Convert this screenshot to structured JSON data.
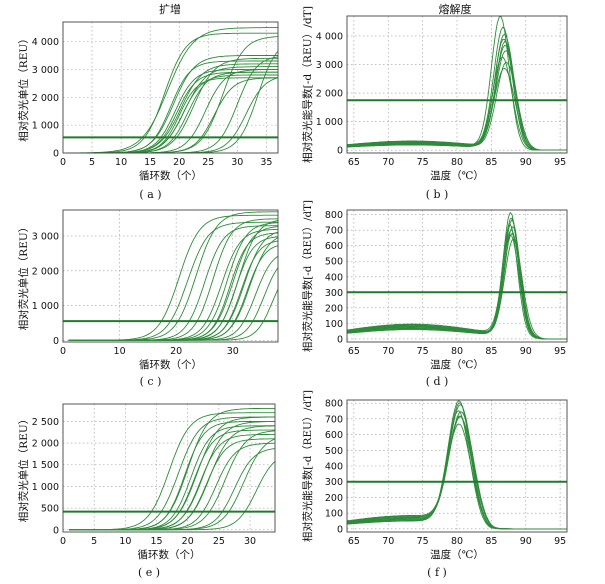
{
  "figure": {
    "column_titles": [
      "扩增",
      "熔解度"
    ]
  },
  "chart_data": [
    {
      "id": "a",
      "type": "line",
      "caption": "( a )",
      "title": "扩增",
      "xlabel": "循环数（个）",
      "ylabel": "相对荧光单位（REU）",
      "xlim": [
        0,
        37
      ],
      "ylim": [
        0,
        4700
      ],
      "xticks": [
        0,
        5,
        10,
        15,
        20,
        25,
        30,
        35
      ],
      "yticks": [
        0,
        1000,
        2000,
        3000,
        4000
      ],
      "grid": true,
      "threshold": 560,
      "curve_model": "sigmoid",
      "series": [
        {
          "midpoint": 17.5,
          "plateau": 4300,
          "steepness": 0.55
        },
        {
          "midpoint": 18.0,
          "plateau": 4500,
          "steepness": 0.45
        },
        {
          "midpoint": 18.5,
          "plateau": 3300,
          "steepness": 0.6
        },
        {
          "midpoint": 19.0,
          "plateau": 3500,
          "steepness": 0.55
        },
        {
          "midpoint": 19.3,
          "plateau": 3000,
          "steepness": 0.6
        },
        {
          "midpoint": 19.6,
          "plateau": 2900,
          "steepness": 0.6
        },
        {
          "midpoint": 20.0,
          "plateau": 2700,
          "steepness": 0.65
        },
        {
          "midpoint": 20.3,
          "plateau": 3200,
          "steepness": 0.55
        },
        {
          "midpoint": 20.6,
          "plateau": 2800,
          "steepness": 0.6
        },
        {
          "midpoint": 21.0,
          "plateau": 3100,
          "steepness": 0.55
        },
        {
          "midpoint": 21.5,
          "plateau": 2900,
          "steepness": 0.6
        },
        {
          "midpoint": 22.5,
          "plateau": 3400,
          "steepness": 0.55
        },
        {
          "midpoint": 24.5,
          "plateau": 3000,
          "steepness": 0.6
        },
        {
          "midpoint": 26.0,
          "plateau": 2700,
          "steepness": 0.6
        },
        {
          "midpoint": 27.5,
          "plateau": 4200,
          "steepness": 0.55
        },
        {
          "midpoint": 30.0,
          "plateau": 3500,
          "steepness": 0.6
        },
        {
          "midpoint": 31.5,
          "plateau": 2800,
          "steepness": 0.6
        },
        {
          "midpoint": 33.5,
          "plateau": 4100,
          "steepness": 0.6
        }
      ]
    },
    {
      "id": "b",
      "type": "line",
      "caption": "( b )",
      "title": "熔解度",
      "xlabel": "温度（℃）",
      "ylabel": "相对荧光能导数[-d（REU）/dT]",
      "xlim": [
        64,
        96
      ],
      "ylim": [
        -100,
        4700
      ],
      "xticks": [
        65,
        70,
        75,
        80,
        85,
        90,
        95
      ],
      "yticks": [
        0,
        1000,
        2000,
        3000,
        4000
      ],
      "grid": true,
      "threshold": 1750,
      "curve_model": "melt-peak",
      "series": [
        {
          "peak_x": 86.3,
          "peak_y": 4600,
          "sigma": 1.3,
          "baseline": 250
        },
        {
          "peak_x": 86.7,
          "peak_y": 4200,
          "sigma": 1.35,
          "baseline": 300
        },
        {
          "peak_x": 86.9,
          "peak_y": 4000,
          "sigma": 1.4,
          "baseline": 200
        },
        {
          "peak_x": 86.8,
          "peak_y": 3800,
          "sigma": 1.35,
          "baseline": 280
        },
        {
          "peak_x": 87.0,
          "peak_y": 3600,
          "sigma": 1.4,
          "baseline": 220
        },
        {
          "peak_x": 87.1,
          "peak_y": 3400,
          "sigma": 1.45,
          "baseline": 260
        },
        {
          "peak_x": 86.6,
          "peak_y": 3200,
          "sigma": 1.4,
          "baseline": 180
        },
        {
          "peak_x": 87.2,
          "peak_y": 3000,
          "sigma": 1.45,
          "baseline": 240
        },
        {
          "peak_x": 86.9,
          "peak_y": 2800,
          "sigma": 1.5,
          "baseline": 200
        },
        {
          "peak_x": 87.0,
          "peak_y": 3700,
          "sigma": 1.35,
          "baseline": 320
        }
      ]
    },
    {
      "id": "c",
      "type": "line",
      "caption": "( c )",
      "xlabel": "循环数（个）",
      "ylabel": "相对荧光单位（REU）",
      "xlim": [
        0,
        38
      ],
      "ylim": [
        -50,
        3750
      ],
      "xticks": [
        0,
        10,
        20,
        30
      ],
      "yticks": [
        0,
        1000,
        2000,
        3000
      ],
      "grid": true,
      "threshold": 550,
      "curve_model": "sigmoid",
      "series": [
        {
          "midpoint": 20.5,
          "plateau": 3600,
          "steepness": 0.55
        },
        {
          "midpoint": 22.0,
          "plateau": 3400,
          "steepness": 0.55
        },
        {
          "midpoint": 23.5,
          "plateau": 3700,
          "steepness": 0.55
        },
        {
          "midpoint": 25.0,
          "plateau": 3300,
          "steepness": 0.6
        },
        {
          "midpoint": 26.5,
          "plateau": 3500,
          "steepness": 0.6
        },
        {
          "midpoint": 28.0,
          "plateau": 3200,
          "steepness": 0.6
        },
        {
          "midpoint": 29.0,
          "plateau": 3400,
          "steepness": 0.6
        },
        {
          "midpoint": 29.5,
          "plateau": 3100,
          "steepness": 0.65
        },
        {
          "midpoint": 30.0,
          "plateau": 3300,
          "steepness": 0.6
        },
        {
          "midpoint": 30.5,
          "plateau": 3000,
          "steepness": 0.65
        },
        {
          "midpoint": 31.0,
          "plateau": 3500,
          "steepness": 0.6
        },
        {
          "midpoint": 31.5,
          "plateau": 2900,
          "steepness": 0.65
        },
        {
          "midpoint": 32.0,
          "plateau": 3200,
          "steepness": 0.6
        },
        {
          "midpoint": 32.5,
          "plateau": 2800,
          "steepness": 0.65
        },
        {
          "midpoint": 33.0,
          "plateau": 3100,
          "steepness": 0.6
        },
        {
          "midpoint": 34.0,
          "plateau": 2600,
          "steepness": 0.65
        },
        {
          "midpoint": 35.5,
          "plateau": 2500,
          "steepness": 0.65
        },
        {
          "midpoint": 37.0,
          "plateau": 2200,
          "steepness": 0.7
        }
      ]
    },
    {
      "id": "d",
      "type": "line",
      "caption": "( d )",
      "xlabel": "温度（℃）",
      "ylabel": "相对荧光能导数[-d（REU）/dT]",
      "xlim": [
        64,
        96
      ],
      "ylim": [
        -20,
        830
      ],
      "xticks": [
        65,
        70,
        75,
        80,
        85,
        90,
        95
      ],
      "yticks": [
        0,
        100,
        200,
        300,
        400,
        500,
        600,
        700,
        800
      ],
      "grid": true,
      "threshold": 300,
      "curve_model": "melt-peak",
      "series": [
        {
          "peak_x": 87.8,
          "peak_y": 790,
          "sigma": 1.1,
          "baseline": 80
        },
        {
          "peak_x": 87.9,
          "peak_y": 760,
          "sigma": 1.1,
          "baseline": 70
        },
        {
          "peak_x": 88.0,
          "peak_y": 740,
          "sigma": 1.15,
          "baseline": 90
        },
        {
          "peak_x": 87.7,
          "peak_y": 720,
          "sigma": 1.1,
          "baseline": 60
        },
        {
          "peak_x": 88.1,
          "peak_y": 700,
          "sigma": 1.15,
          "baseline": 85
        },
        {
          "peak_x": 87.9,
          "peak_y": 680,
          "sigma": 1.2,
          "baseline": 75
        },
        {
          "peak_x": 88.0,
          "peak_y": 660,
          "sigma": 1.2,
          "baseline": 65
        },
        {
          "peak_x": 87.8,
          "peak_y": 640,
          "sigma": 1.2,
          "baseline": 95
        },
        {
          "peak_x": 88.2,
          "peak_y": 620,
          "sigma": 1.25,
          "baseline": 80
        }
      ]
    },
    {
      "id": "e",
      "type": "line",
      "caption": "( e )",
      "xlabel": "循环数（个）",
      "ylabel": "相对荧光单位（REU）",
      "xlim": [
        0,
        34
      ],
      "ylim": [
        -50,
        2900
      ],
      "xticks": [
        0,
        5,
        10,
        15,
        20,
        25,
        30
      ],
      "yticks": [
        0,
        500,
        1000,
        1500,
        2000,
        2500
      ],
      "grid": true,
      "threshold": 420,
      "curve_model": "sigmoid",
      "series": [
        {
          "midpoint": 17.0,
          "plateau": 2700,
          "steepness": 0.6
        },
        {
          "midpoint": 18.5,
          "plateau": 2600,
          "steepness": 0.6
        },
        {
          "midpoint": 19.5,
          "plateau": 2500,
          "steepness": 0.65
        },
        {
          "midpoint": 20.0,
          "plateau": 2800,
          "steepness": 0.6
        },
        {
          "midpoint": 20.5,
          "plateau": 2400,
          "steepness": 0.65
        },
        {
          "midpoint": 21.0,
          "plateau": 2300,
          "steepness": 0.65
        },
        {
          "midpoint": 21.5,
          "plateau": 2600,
          "steepness": 0.6
        },
        {
          "midpoint": 22.0,
          "plateau": 2200,
          "steepness": 0.65
        },
        {
          "midpoint": 22.5,
          "plateau": 2500,
          "steepness": 0.6
        },
        {
          "midpoint": 23.0,
          "plateau": 2100,
          "steepness": 0.65
        },
        {
          "midpoint": 23.5,
          "plateau": 2400,
          "steepness": 0.6
        },
        {
          "midpoint": 24.5,
          "plateau": 2000,
          "steepness": 0.65
        },
        {
          "midpoint": 26.0,
          "plateau": 2300,
          "steepness": 0.6
        },
        {
          "midpoint": 27.5,
          "plateau": 1900,
          "steepness": 0.65
        },
        {
          "midpoint": 29.0,
          "plateau": 2200,
          "steepness": 0.6
        },
        {
          "midpoint": 31.0,
          "plateau": 1800,
          "steepness": 0.65
        }
      ]
    },
    {
      "id": "f",
      "type": "line",
      "caption": "( f )",
      "xlabel": "温度（℃）",
      "ylabel": "相对荧光能导数[-d（REU）/dT]",
      "xlim": [
        64,
        96
      ],
      "ylim": [
        -20,
        820
      ],
      "xticks": [
        65,
        70,
        75,
        80,
        85,
        90,
        95
      ],
      "yticks": [
        0,
        100,
        200,
        300,
        400,
        500,
        600,
        700,
        800
      ],
      "grid": true,
      "threshold": 300,
      "curve_model": "melt-peak",
      "series": [
        {
          "peak_x": 80.3,
          "peak_y": 770,
          "sigma": 1.6,
          "baseline": 60
        },
        {
          "peak_x": 80.4,
          "peak_y": 750,
          "sigma": 1.6,
          "baseline": 70
        },
        {
          "peak_x": 80.5,
          "peak_y": 730,
          "sigma": 1.65,
          "baseline": 80
        },
        {
          "peak_x": 80.2,
          "peak_y": 710,
          "sigma": 1.6,
          "baseline": 55
        },
        {
          "peak_x": 80.6,
          "peak_y": 690,
          "sigma": 1.7,
          "baseline": 75
        },
        {
          "peak_x": 80.4,
          "peak_y": 670,
          "sigma": 1.65,
          "baseline": 65
        },
        {
          "peak_x": 80.5,
          "peak_y": 650,
          "sigma": 1.7,
          "baseline": 85
        },
        {
          "peak_x": 80.3,
          "peak_y": 630,
          "sigma": 1.7,
          "baseline": 50
        }
      ]
    }
  ]
}
